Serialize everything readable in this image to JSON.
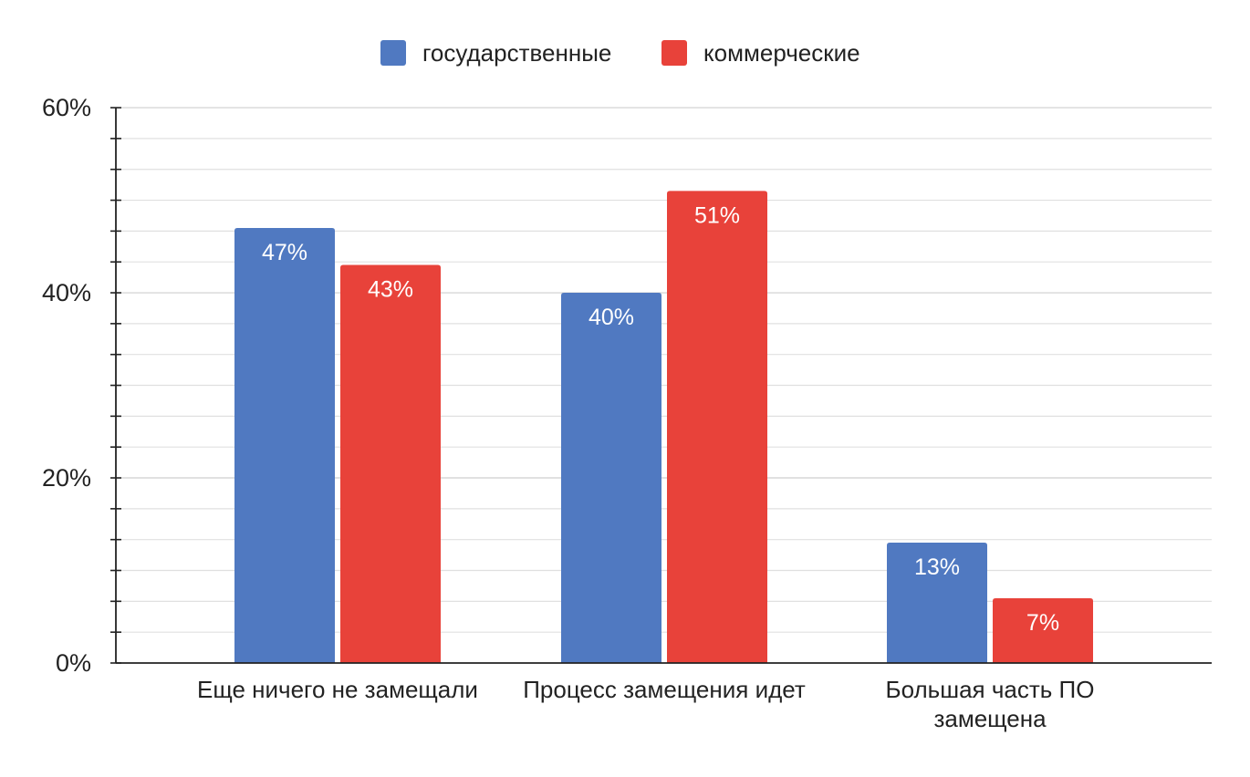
{
  "chart_data": {
    "type": "bar",
    "categories": [
      "Еще ничего не замещали",
      "Процесс замещения идет",
      "Большая часть ПО замещена"
    ],
    "series": [
      {
        "name": "государственные",
        "values": [
          47,
          40,
          13
        ],
        "color": "#5079c1"
      },
      {
        "name": "коммерческие",
        "values": [
          43,
          51,
          7
        ],
        "color": "#e8423a"
      }
    ],
    "data_labels": [
      [
        "47%",
        "40%",
        "13%"
      ],
      [
        "43%",
        "51%",
        "7%"
      ]
    ],
    "ylim": [
      0,
      60
    ],
    "yticks": [
      "0%",
      "20%",
      "40%",
      "60%"
    ],
    "ytick_values": [
      0,
      20,
      40,
      60
    ],
    "minor_step": 3.333,
    "grid": true,
    "legend_position": "top-center",
    "title": "",
    "xlabel": "",
    "ylabel": ""
  }
}
